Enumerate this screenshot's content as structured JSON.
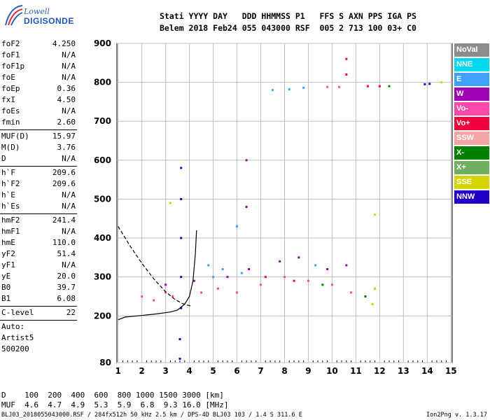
{
  "logo": {
    "line1": "Lowell",
    "line2": "DIGISONDE"
  },
  "header": {
    "row1": "Stati YYYY DAY   DDD HHMMSS P1   FFS S AXN PPS IGA PS",
    "row2": "Belem 2018 Feb24 055 043000 RSF  005 2 713 100 03+ C0"
  },
  "params": [
    {
      "name": "foF2",
      "value": "4.250"
    },
    {
      "name": "foF1",
      "value": "N/A"
    },
    {
      "name": "foF1p",
      "value": "N/A"
    },
    {
      "name": "foE",
      "value": "N/A"
    },
    {
      "name": "foEp",
      "value": "0.36"
    },
    {
      "name": "fxI",
      "value": "4.50"
    },
    {
      "name": "foEs",
      "value": "N/A"
    },
    {
      "name": "fmin",
      "value": "2.60"
    },
    {
      "name": "MUF(D)",
      "value": "15.97"
    },
    {
      "name": "M(D)",
      "value": "3.76"
    },
    {
      "name": "D",
      "value": "N/A"
    },
    {
      "name": "h`F",
      "value": "209.6"
    },
    {
      "name": "h`F2",
      "value": "209.6"
    },
    {
      "name": "h`E",
      "value": "N/A"
    },
    {
      "name": "h`Es",
      "value": "N/A"
    },
    {
      "name": "hmF2",
      "value": "241.4"
    },
    {
      "name": "hmF1",
      "value": "N/A"
    },
    {
      "name": "hmE",
      "value": "110.0"
    },
    {
      "name": "yF2",
      "value": "51.4"
    },
    {
      "name": "yF1",
      "value": "N/A"
    },
    {
      "name": "yE",
      "value": "20.0"
    },
    {
      "name": "B0",
      "value": "39.7"
    },
    {
      "name": "B1",
      "value": "6.08"
    },
    {
      "name": "C-level",
      "value": "22"
    },
    {
      "name": "Auto:",
      "value": ""
    },
    {
      "name": "Artist5",
      "value": ""
    },
    {
      "name": "500200",
      "value": ""
    }
  ],
  "legend": [
    {
      "label": "NoVal",
      "color": "#8c8c8c"
    },
    {
      "label": "NNE",
      "color": "#00d8f0"
    },
    {
      "label": "E",
      "color": "#3ea0ff"
    },
    {
      "label": "W",
      "color": "#a000b4"
    },
    {
      "label": "Vo-",
      "color": "#ff48a8"
    },
    {
      "label": "Vo+",
      "color": "#f0003c"
    },
    {
      "label": "SSW",
      "color": "#f4a4a4"
    },
    {
      "label": "X-",
      "color": "#008000"
    },
    {
      "label": "X+",
      "color": "#70b060"
    },
    {
      "label": "SSE",
      "color": "#d4d400"
    },
    {
      "label": "NNW",
      "color": "#2000c8"
    }
  ],
  "dtable": {
    "row1": "D    100  200  400  600  800 1000 1500 3000 [km]",
    "row2": "MUF  4.6  4.7  4.9  5.3  5.9  6.8  9.3 16.0 [MHz]"
  },
  "footer": {
    "left": "BLJ03_2018055043000.RSF / 284fx512h 50 kHz 2.5 km / DPS-4D BLJ03 103 / 1.4 S 311.6 E",
    "right": "Ion2Png v. 1.3.17"
  },
  "chart_data": {
    "type": "scatter",
    "x_ticks": [
      "1",
      "2",
      "3",
      "4",
      "5",
      "6",
      "7",
      "8",
      "9",
      "10",
      "11",
      "12",
      "13",
      "14",
      "15"
    ],
    "y_ticks": [
      "80",
      "200",
      "300",
      "400",
      "500",
      "600",
      "700",
      "800",
      "900"
    ],
    "xlim": [
      0.95,
      15.05
    ],
    "ylim": [
      80,
      900
    ],
    "grid": true,
    "legend_position": "right",
    "series": [
      {
        "color": "#2000c8",
        "points": [
          [
            3.65,
            220
          ],
          [
            3.65,
            300
          ],
          [
            3.65,
            400
          ],
          [
            3.65,
            500
          ],
          [
            3.65,
            580
          ],
          [
            3.6,
            140
          ],
          [
            3.6,
            90
          ],
          [
            13.9,
            795
          ],
          [
            14.1,
            796
          ]
        ]
      },
      {
        "color": "#ff48a8",
        "points": [
          [
            2.0,
            250
          ],
          [
            2.5,
            240
          ],
          [
            3.0,
            260
          ],
          [
            3.3,
            250
          ],
          [
            4.5,
            260
          ],
          [
            5.2,
            270
          ],
          [
            6.0,
            260
          ],
          [
            7.0,
            280
          ],
          [
            8.0,
            300
          ],
          [
            9.0,
            290
          ],
          [
            10.0,
            280
          ],
          [
            10.8,
            260
          ],
          [
            9.8,
            788
          ],
          [
            10.3,
            788
          ]
        ]
      },
      {
        "color": "#3ea0ff",
        "points": [
          [
            5.0,
            300
          ],
          [
            5.4,
            320
          ],
          [
            6.2,
            310
          ],
          [
            7.5,
            780
          ],
          [
            8.2,
            782
          ],
          [
            8.8,
            786
          ],
          [
            6.0,
            430
          ],
          [
            4.8,
            330
          ],
          [
            9.3,
            330
          ]
        ]
      },
      {
        "color": "#a000b4",
        "points": [
          [
            3.0,
            280
          ],
          [
            4.2,
            290
          ],
          [
            5.6,
            300
          ],
          [
            6.5,
            320
          ],
          [
            7.8,
            340
          ],
          [
            8.6,
            350
          ],
          [
            9.8,
            320
          ],
          [
            10.6,
            330
          ],
          [
            6.4,
            600
          ],
          [
            6.4,
            480
          ]
        ]
      },
      {
        "color": "#f0003c",
        "points": [
          [
            10.6,
            820
          ],
          [
            10.6,
            860
          ],
          [
            11.5,
            790
          ],
          [
            12.0,
            790
          ],
          [
            7.2,
            300
          ],
          [
            8.4,
            290
          ]
        ]
      },
      {
        "color": "#008000",
        "points": [
          [
            9.6,
            280
          ],
          [
            11.4,
            250
          ],
          [
            11.8,
            270
          ],
          [
            12.4,
            790
          ]
        ]
      },
      {
        "color": "#d4d400",
        "points": [
          [
            11.7,
            230
          ],
          [
            11.8,
            270
          ],
          [
            14.6,
            800
          ],
          [
            3.2,
            490
          ],
          [
            11.8,
            460
          ]
        ]
      }
    ],
    "curves": [
      {
        "name": "",
        "style": "solid",
        "points": [
          [
            1.0,
            190
          ],
          [
            1.3,
            197
          ],
          [
            1.8,
            200
          ],
          [
            2.6,
            205
          ],
          [
            3.2,
            210
          ],
          [
            3.5,
            215
          ],
          [
            3.8,
            230
          ],
          [
            4.0,
            250
          ],
          [
            4.15,
            290
          ],
          [
            4.25,
            360
          ],
          [
            4.3,
            420
          ]
        ]
      },
      {
        "name": "",
        "style": "dashed",
        "points": [
          [
            1.0,
            430
          ],
          [
            1.5,
            380
          ],
          [
            2.0,
            335
          ],
          [
            2.5,
            295
          ],
          [
            3.0,
            262
          ],
          [
            3.4,
            242
          ],
          [
            3.7,
            232
          ],
          [
            3.9,
            228
          ],
          [
            4.1,
            225
          ]
        ]
      }
    ]
  }
}
